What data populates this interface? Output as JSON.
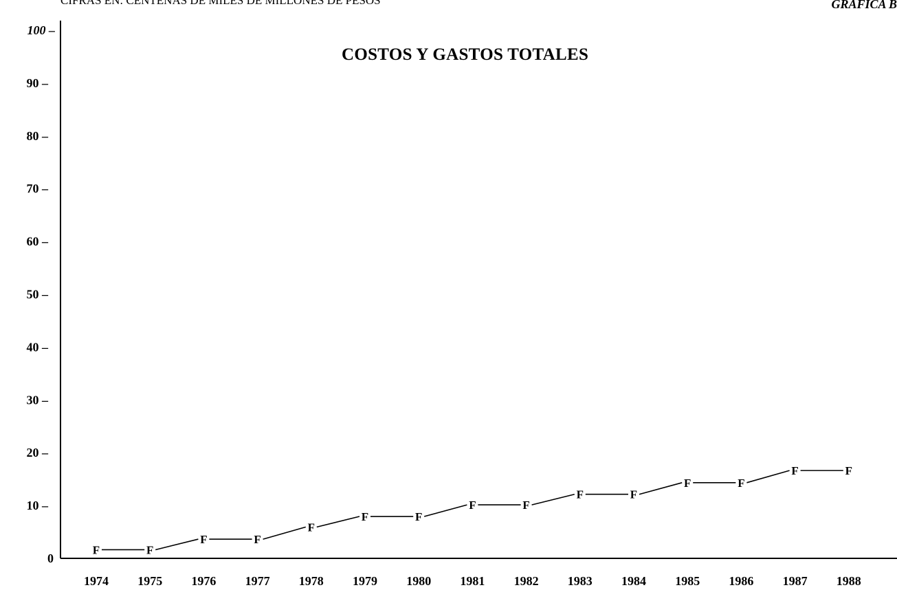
{
  "header": {
    "units": "CIFRAS EN: CENTENAS DE MILES DE MILLONES DE PESOS",
    "figure_id": "GRAFICA B"
  },
  "chart_data": {
    "type": "line",
    "title": "COSTOS Y GASTOS TOTALES",
    "xlabel": "",
    "ylabel": "",
    "x": [
      "1974",
      "1975",
      "1976",
      "1977",
      "1978",
      "1979",
      "1980",
      "1981",
      "1982",
      "1983",
      "1984",
      "1985",
      "1986",
      "1987",
      "1988"
    ],
    "series": [
      {
        "marker": "F",
        "values": [
          1.5,
          1.5,
          3.5,
          3.5,
          5.8,
          7.8,
          7.8,
          10.0,
          10.0,
          12.0,
          12.0,
          14.2,
          14.2,
          16.5,
          16.5
        ]
      }
    ],
    "yticks": [
      0,
      10,
      20,
      30,
      40,
      50,
      60,
      70,
      80,
      90,
      100
    ],
    "ytick_labels": [
      "0",
      "10 –",
      "20 –",
      "30 –",
      "40 –",
      "50 –",
      "60 –",
      "70 –",
      "80 –",
      "90 –",
      "100 –"
    ],
    "ylim": [
      0,
      100
    ],
    "grid": false,
    "legend": "none"
  }
}
